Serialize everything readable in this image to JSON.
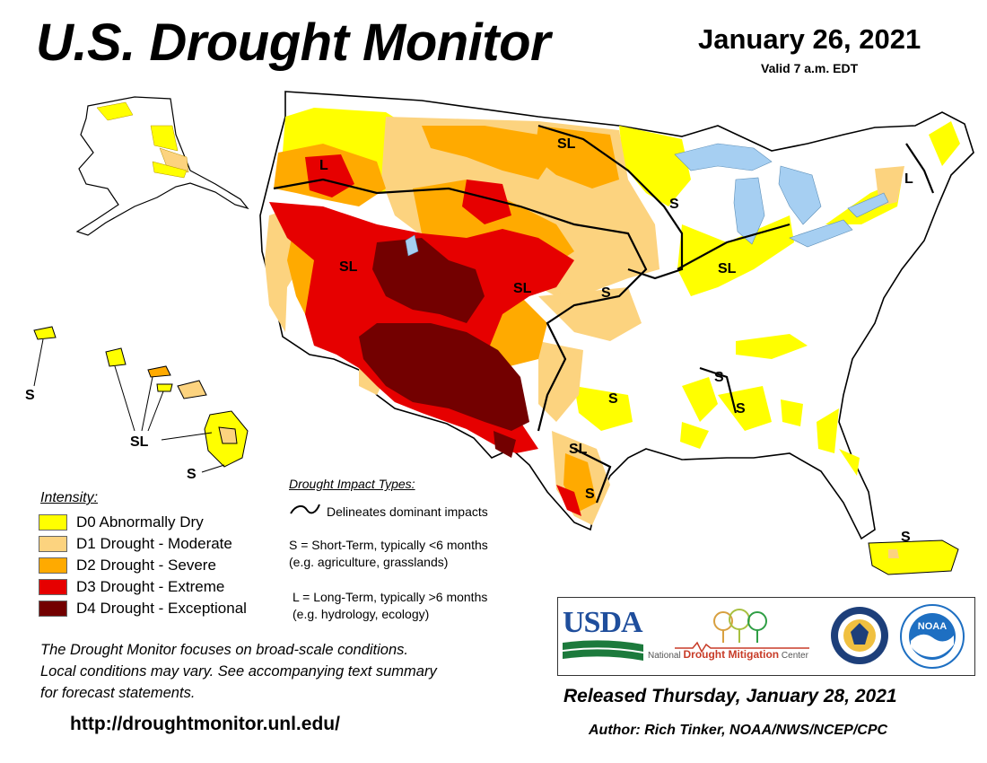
{
  "header": {
    "title": "U.S. Drought Monitor",
    "date": "January 26, 2021",
    "valid": "Valid 7 a.m. EDT"
  },
  "legend": {
    "title": "Intensity:",
    "items": [
      {
        "label": "D0 Abnormally Dry",
        "color": "#ffff00"
      },
      {
        "label": "D1 Drought - Moderate",
        "color": "#fcd37f"
      },
      {
        "label": "D2 Drought - Severe",
        "color": "#ffaa00"
      },
      {
        "label": "D3 Drought - Extreme",
        "color": "#e60000"
      },
      {
        "label": "D4 Drought - Exceptional",
        "color": "#730000"
      }
    ]
  },
  "impacts": {
    "title": "Drought Impact Types:",
    "delineates": "Delineates dominant impacts",
    "short_term_1": "S = Short-Term, typically <6 months",
    "short_term_2": "(e.g. agriculture, grasslands)",
    "long_term_1": "L = Long-Term, typically >6 months",
    "long_term_2": "(e.g. hydrology, ecology)"
  },
  "note": {
    "line1": "The Drought Monitor focuses on broad-scale conditions.",
    "line2": "Local conditions may vary.  See accompanying text summary",
    "line3": "for forecast statements."
  },
  "url": "http://droughtmonitor.unl.edu/",
  "released": "Released Thursday, January 28, 2021",
  "author": "Author: Rich Tinker, NOAA/NWS/NCEP/CPC",
  "logos": {
    "usda": "USDA",
    "ndmc_national": "National",
    "ndmc_drought": "Drought Mitigation",
    "ndmc_center": "Center",
    "noaa": "NOAA"
  },
  "map_labels": {
    "oregon": "L",
    "nevada": "SL",
    "colorado": "SL",
    "dakotas": "SL",
    "minnesota": "S",
    "kansas": "S",
    "indiana": "SL",
    "maine": "L",
    "arkansas": "S",
    "mississippi": "S",
    "alabama": "S",
    "texas_central": "SL",
    "texas_south": "S",
    "alaska": "",
    "hawaii_west": "S",
    "hawaii_mid": "SL",
    "hawaii_big": "S",
    "puerto_rico": "S"
  },
  "colors": {
    "d0": "#ffff00",
    "d1": "#fcd37f",
    "d2": "#ffaa00",
    "d3": "#e60000",
    "d4": "#730000",
    "water": "#a6cff2",
    "border": "#000000",
    "noaa_blue": "#1e6fc2",
    "usda_green": "#1c7a3c",
    "usda_blue": "#1f4e9c"
  }
}
